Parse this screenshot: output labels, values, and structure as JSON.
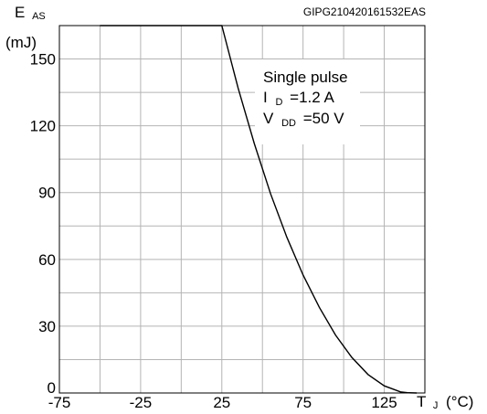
{
  "chart_data": {
    "type": "line",
    "reference": "GIPG210420161532EAS",
    "y_axis": {
      "symbol": "E",
      "subscript": "AS",
      "unit": "(mJ)",
      "range": [
        0,
        165
      ],
      "ticks": [
        0,
        30,
        60,
        90,
        120,
        150
      ],
      "tick_labels": [
        "0",
        "30",
        "60",
        "90",
        "120",
        "150"
      ]
    },
    "x_axis": {
      "symbol": "T",
      "subscript": "J",
      "unit": "(°C)",
      "range": [
        -75,
        150
      ],
      "ticks": [
        -75,
        -25,
        25,
        75,
        125
      ],
      "tick_labels": [
        "-75",
        "-25",
        "25",
        "75",
        "125"
      ]
    },
    "grid": true,
    "grid_minor_x": [
      -50,
      0,
      50,
      100
    ],
    "grid_minor_y": [
      15,
      45,
      75,
      105,
      135
    ],
    "series": [
      {
        "x": [
          -50,
          25,
          35,
          45,
          55,
          65,
          75,
          85,
          95,
          105,
          115,
          125,
          135,
          140,
          145
        ],
        "y": [
          165,
          165,
          137.0,
          112.0,
          89.5,
          70.0,
          53.0,
          38.5,
          26.0,
          16.0,
          8.3,
          3.2,
          0.5,
          0.1,
          0
        ]
      }
    ],
    "annotations": [
      {
        "main": "Single pulse"
      },
      {
        "symbol": "I",
        "subscript": "D",
        "value": "=1.2 A"
      },
      {
        "symbol": "V",
        "subscript": "DD",
        "value": "=50 V"
      }
    ]
  }
}
